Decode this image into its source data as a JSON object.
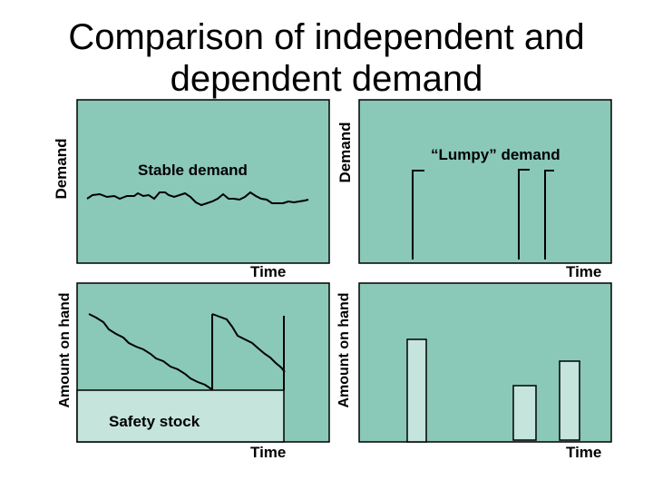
{
  "title": "Comparison of independent and dependent demand",
  "colors": {
    "panel": "#8ac8b7",
    "safety_stock": "#c4e4dc",
    "line": "#000000"
  },
  "panels": {
    "top_left": {
      "ylabel": "Demand",
      "xlabel": "Time",
      "label": "Stable demand"
    },
    "top_right": {
      "ylabel": "Demand",
      "xlabel": "Time",
      "label": "“Lumpy” demand"
    },
    "bottom_left": {
      "ylabel": "Amount on hand",
      "xlabel": "Time",
      "label": "Safety stock"
    },
    "bottom_right": {
      "ylabel": "Amount on hand",
      "xlabel": "Time"
    }
  }
}
